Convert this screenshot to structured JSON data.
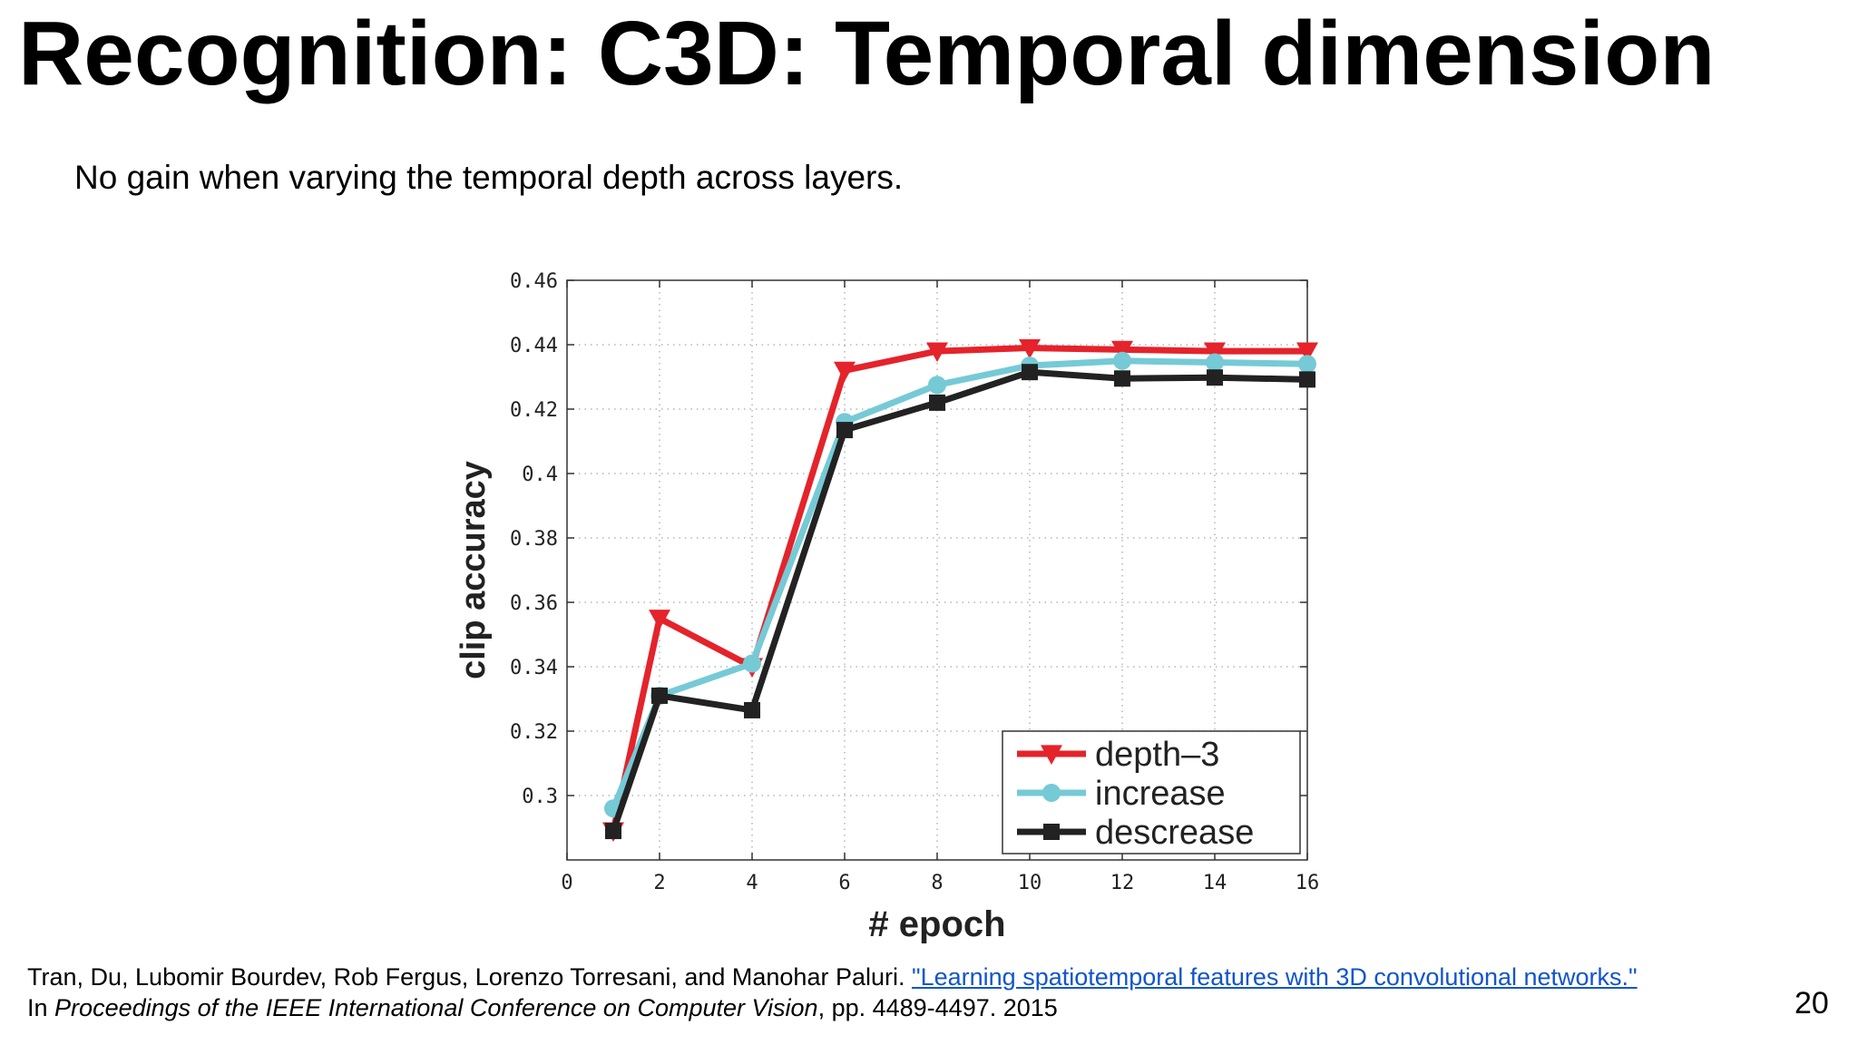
{
  "slide": {
    "title": "Recognition: C3D: Temporal dimension",
    "subtitle": "No gain when varying the temporal depth across layers.",
    "page_number": "20"
  },
  "citation": {
    "authors": "Tran, Du, Lubomir Bourdev, Rob Fergus, Lorenzo Torresani, and Manohar Paluri.",
    "link_text": "\"Learning spatiotemporal features with 3D convolutional networks.\"",
    "prefix": "In",
    "venue": "Proceedings of the IEEE International Conference on Computer Vision",
    "pages": ", pp. 4489-4497. 2015"
  },
  "chart_data": {
    "type": "line",
    "title": "",
    "xlabel": "# epoch",
    "ylabel": "clip accuracy",
    "xlim": [
      0,
      16
    ],
    "ylim": [
      0.28,
      0.46
    ],
    "x_ticks": [
      0,
      2,
      4,
      6,
      8,
      10,
      12,
      14,
      16
    ],
    "y_ticks": [
      0.3,
      0.32,
      0.34,
      0.36,
      0.38,
      0.4,
      0.42,
      0.44,
      0.46
    ],
    "y_tick_labels": [
      "0.3",
      "0.32",
      "0.34",
      "0.36",
      "0.38",
      "0.4",
      "0.42",
      "0.44",
      "0.46"
    ],
    "grid": true,
    "legend_position": "bottom-right",
    "x": [
      1,
      2,
      4,
      6,
      8,
      10,
      12,
      14,
      16
    ],
    "series": [
      {
        "name": "depth–3",
        "color": "#e4232b",
        "marker": "triangle-down",
        "values": [
          0.289,
          0.355,
          0.34,
          0.432,
          0.438,
          0.439,
          0.4385,
          0.438,
          0.438
        ]
      },
      {
        "name": "increase",
        "color": "#75cad6",
        "marker": "circle",
        "values": [
          0.296,
          0.331,
          0.341,
          0.416,
          0.4275,
          0.4335,
          0.435,
          0.4345,
          0.434
        ]
      },
      {
        "name": "descrease",
        "color": "#222222",
        "marker": "square",
        "values": [
          0.289,
          0.331,
          0.3265,
          0.4135,
          0.422,
          0.4315,
          0.4295,
          0.4298,
          0.4292
        ]
      }
    ]
  }
}
